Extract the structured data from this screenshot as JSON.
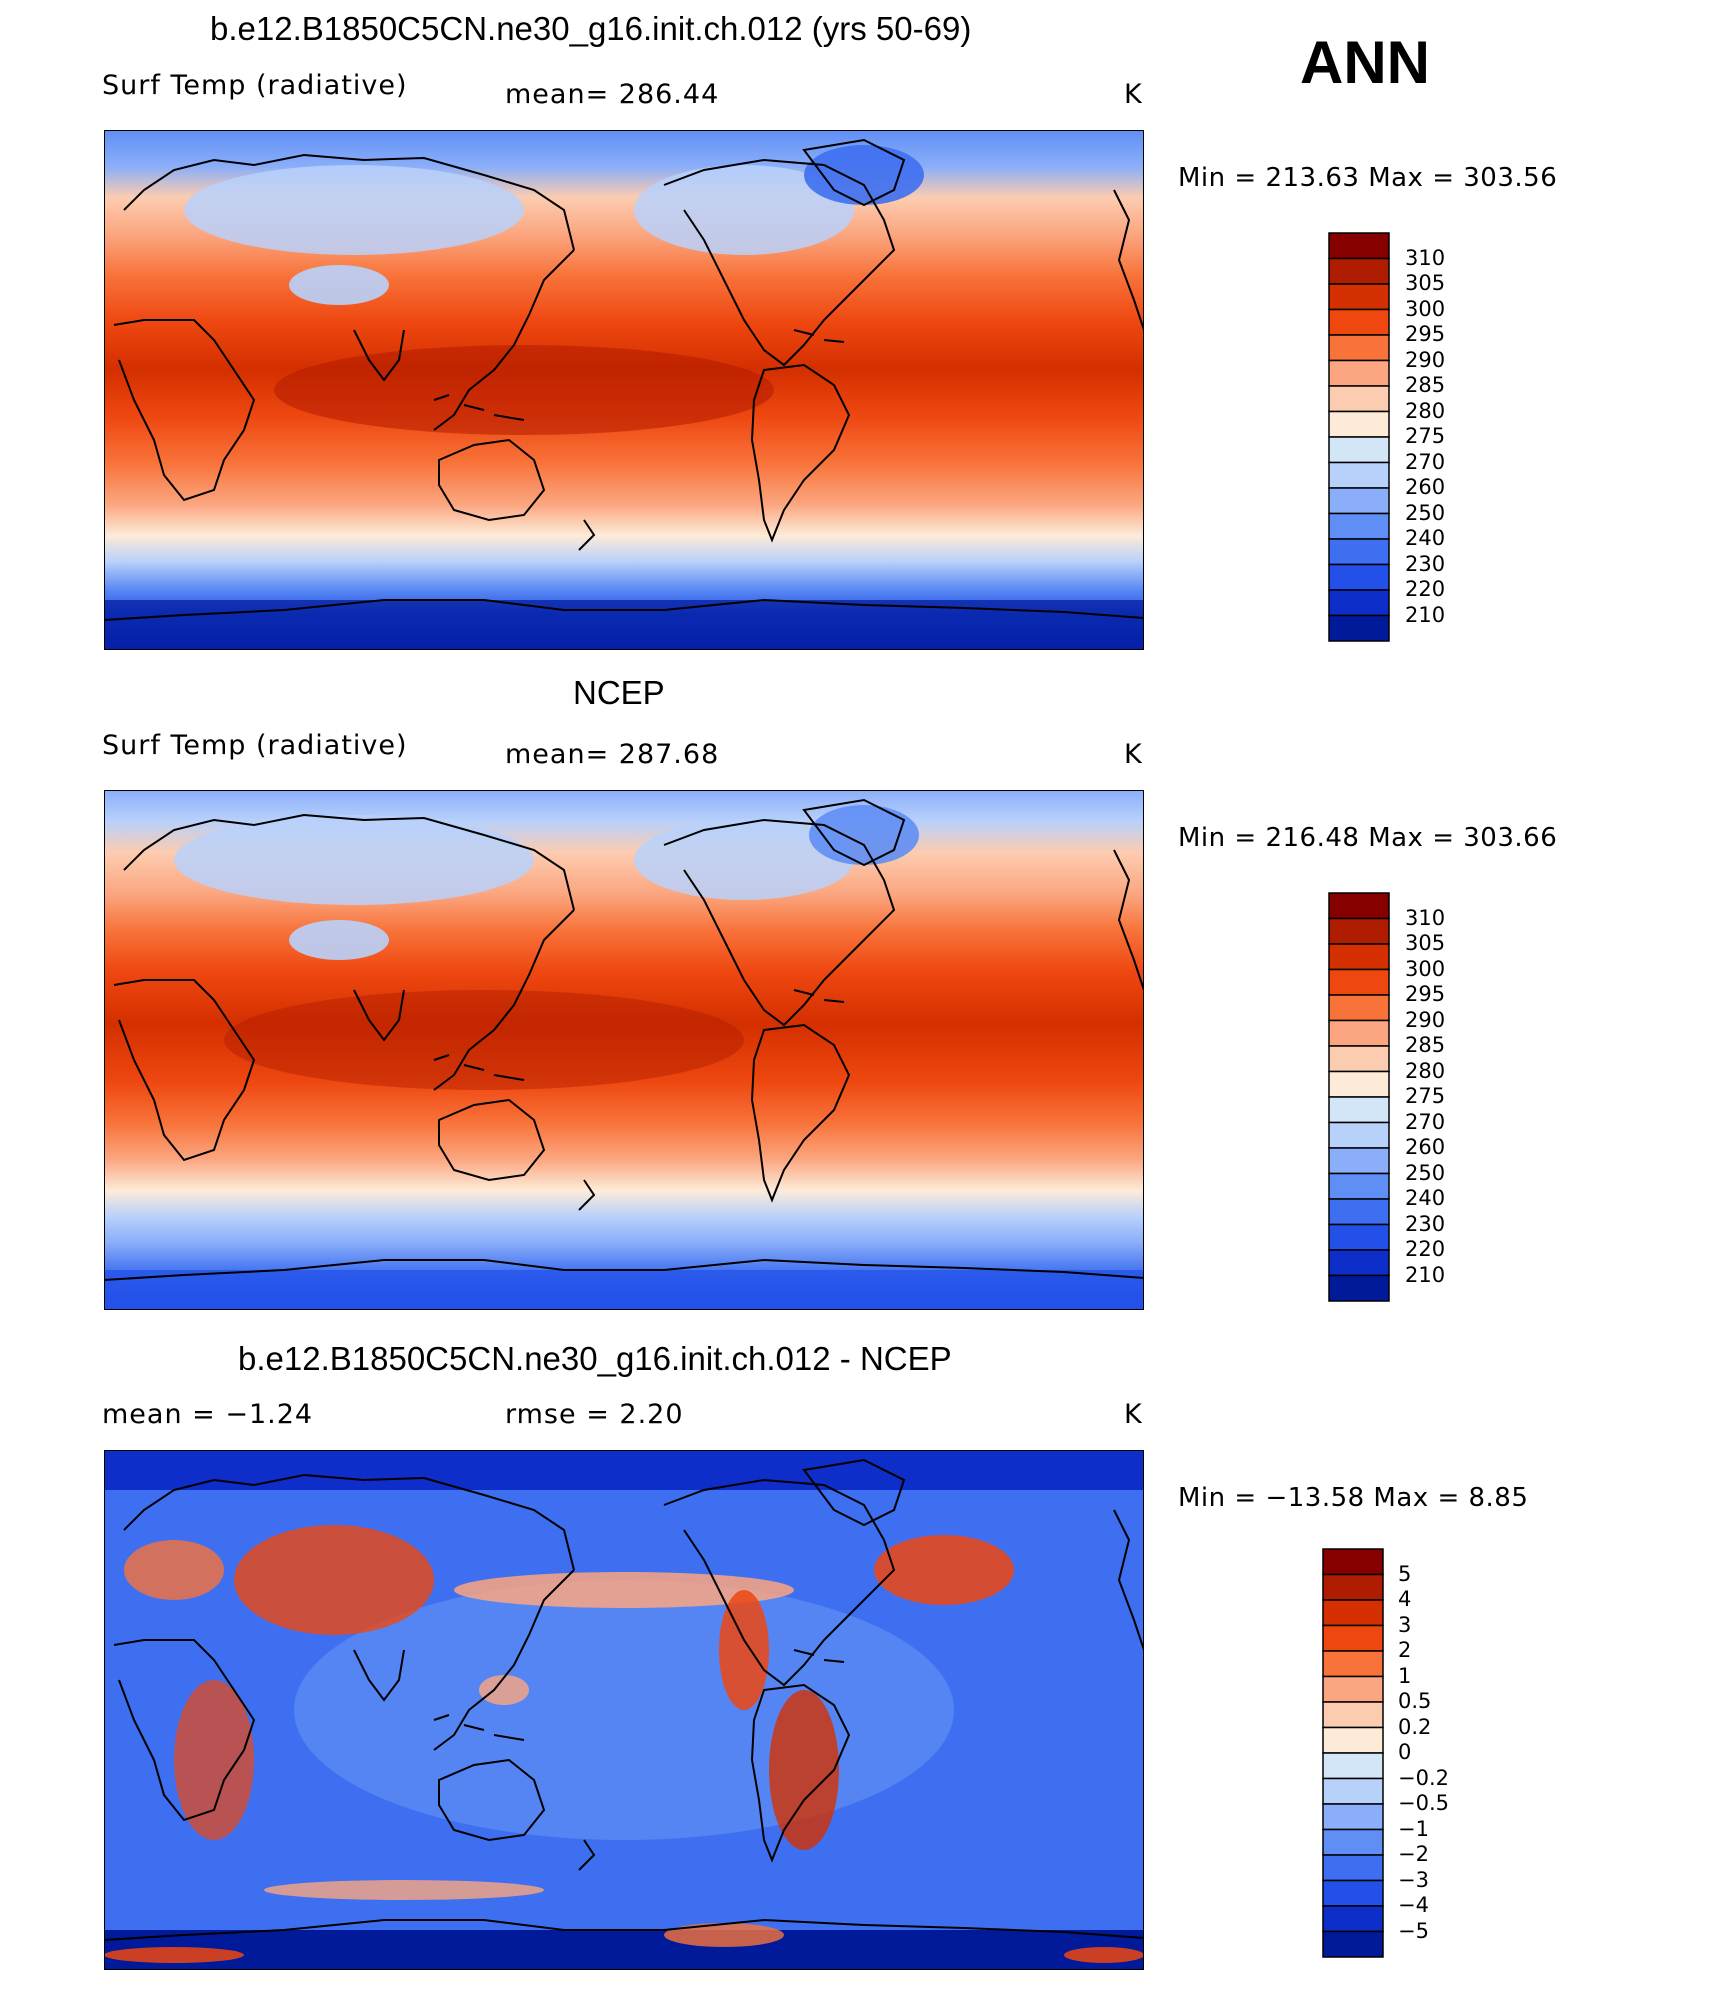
{
  "season": "ANN",
  "panels": [
    {
      "title": "b.e12.B1850C5CN.ne30_g16.init.ch.012 (yrs 50-69)",
      "left_label": "Surf Temp (radiative)",
      "center_label": "mean=  286.44",
      "units": "K",
      "minmax": "Min  =  213.63  Max  =  303.56",
      "colorbar": {
        "labels": [
          "310",
          "305",
          "300",
          "295",
          "290",
          "285",
          "280",
          "275",
          "270",
          "260",
          "250",
          "240",
          "230",
          "220",
          "210"
        ],
        "colors": [
          "#870000",
          "#b01c00",
          "#d42f00",
          "#ee4710",
          "#f8733a",
          "#fba680",
          "#fcccb0",
          "#fdebd8",
          "#d3e6f8",
          "#b8d1fb",
          "#8aaef9",
          "#5f8ef4",
          "#3e6ff0",
          "#2250e8",
          "#0d2ec8",
          "#011a9a"
        ]
      },
      "chart_data": {
        "type": "heatmap",
        "variable": "Surf Temp (radiative)",
        "units": "K",
        "mean": 286.44,
        "min": 213.63,
        "max": 303.56,
        "levels": [
          210,
          220,
          230,
          240,
          250,
          260,
          270,
          275,
          280,
          285,
          290,
          295,
          300,
          305,
          310
        ]
      }
    },
    {
      "title": "NCEP",
      "left_label": "Surf Temp (radiative)",
      "center_label": "mean=  287.68",
      "units": "K",
      "minmax": "Min  =  216.48  Max  =  303.66",
      "colorbar": {
        "labels": [
          "310",
          "305",
          "300",
          "295",
          "290",
          "285",
          "280",
          "275",
          "270",
          "260",
          "250",
          "240",
          "230",
          "220",
          "210"
        ],
        "colors": [
          "#870000",
          "#b01c00",
          "#d42f00",
          "#ee4710",
          "#f8733a",
          "#fba680",
          "#fcccb0",
          "#fdebd8",
          "#d3e6f8",
          "#b8d1fb",
          "#8aaef9",
          "#5f8ef4",
          "#3e6ff0",
          "#2250e8",
          "#0d2ec8",
          "#011a9a"
        ]
      },
      "chart_data": {
        "type": "heatmap",
        "variable": "Surf Temp (radiative)",
        "units": "K",
        "mean": 287.68,
        "min": 216.48,
        "max": 303.66,
        "levels": [
          210,
          220,
          230,
          240,
          250,
          260,
          270,
          275,
          280,
          285,
          290,
          295,
          300,
          305,
          310
        ]
      }
    },
    {
      "title": "b.e12.B1850C5CN.ne30_g16.init.ch.012 - NCEP",
      "left_label": "mean =    −1.24",
      "center_label": "rmse =     2.20",
      "units": "K",
      "minmax": "Min  =  −13.58  Max  =     8.85",
      "colorbar": {
        "labels": [
          "5",
          "4",
          "3",
          "2",
          "1",
          "0.5",
          "0.2",
          "0",
          "−0.2",
          "−0.5",
          "−1",
          "−2",
          "−3",
          "−4",
          "−5"
        ],
        "colors": [
          "#870000",
          "#b01c00",
          "#d42f00",
          "#ee4710",
          "#f8733a",
          "#fba680",
          "#fcccb0",
          "#fdebd8",
          "#d3e6f8",
          "#b8d1fb",
          "#8aaef9",
          "#5f8ef4",
          "#3e6ff0",
          "#2250e8",
          "#0d2ec8",
          "#011a9a"
        ]
      },
      "chart_data": {
        "type": "heatmap",
        "variable": "difference",
        "units": "K",
        "mean": -1.24,
        "rmse": 2.2,
        "min": -13.58,
        "max": 8.85,
        "levels": [
          -5,
          -4,
          -3,
          -2,
          -1,
          -0.5,
          -0.2,
          0,
          0.2,
          0.5,
          1,
          2,
          3,
          4,
          5
        ]
      }
    }
  ]
}
